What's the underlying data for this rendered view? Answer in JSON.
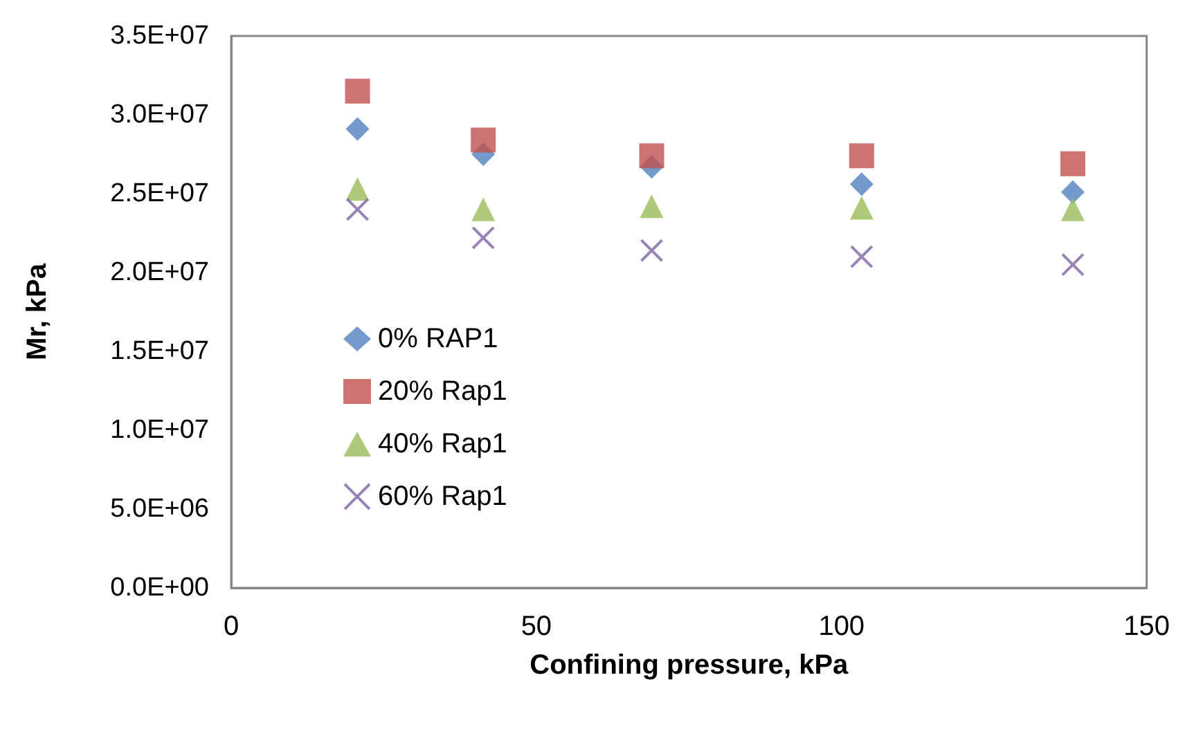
{
  "chart_data": {
    "type": "scatter",
    "xlabel": "Confining pressure, kPa",
    "ylabel": "Mr, kPa",
    "x": [
      20.7,
      41.3,
      68.9,
      103.3,
      137.9
    ],
    "series": [
      {
        "name": "0% RAP1",
        "color": "#4f81bd",
        "marker": "diamond",
        "values": [
          29100000,
          27500000,
          26700000,
          25600000,
          25100000
        ]
      },
      {
        "name": "20% Rap1",
        "color": "#c0504d",
        "marker": "square",
        "values": [
          31500000,
          28400000,
          27400000,
          27400000,
          26900000
        ]
      },
      {
        "name": "40% Rap1",
        "color": "#9bbb59",
        "marker": "triangle",
        "values": [
          25300000,
          24000000,
          24200000,
          24100000,
          24000000
        ]
      },
      {
        "name": "60% Rap1",
        "color": "#8064a2",
        "marker": "cross",
        "values": [
          24000000,
          22200000,
          21400000,
          21000000,
          20500000
        ]
      }
    ],
    "xlim": [
      0,
      150
    ],
    "xticks": [
      0,
      50,
      100,
      150
    ],
    "ylim": [
      0,
      35000000
    ],
    "yticks": [
      {
        "value": 0,
        "label": "0.0E+00"
      },
      {
        "value": 5000000,
        "label": "5.0E+06"
      },
      {
        "value": 10000000,
        "label": "1.0E+07"
      },
      {
        "value": 15000000,
        "label": "1.5E+07"
      },
      {
        "value": 20000000,
        "label": "2.0E+07"
      },
      {
        "value": 25000000,
        "label": "2.5E+07"
      },
      {
        "value": 30000000,
        "label": "3.0E+07"
      },
      {
        "value": 35000000,
        "label": "3.5E+07"
      }
    ],
    "grid": false,
    "legend": "left"
  }
}
